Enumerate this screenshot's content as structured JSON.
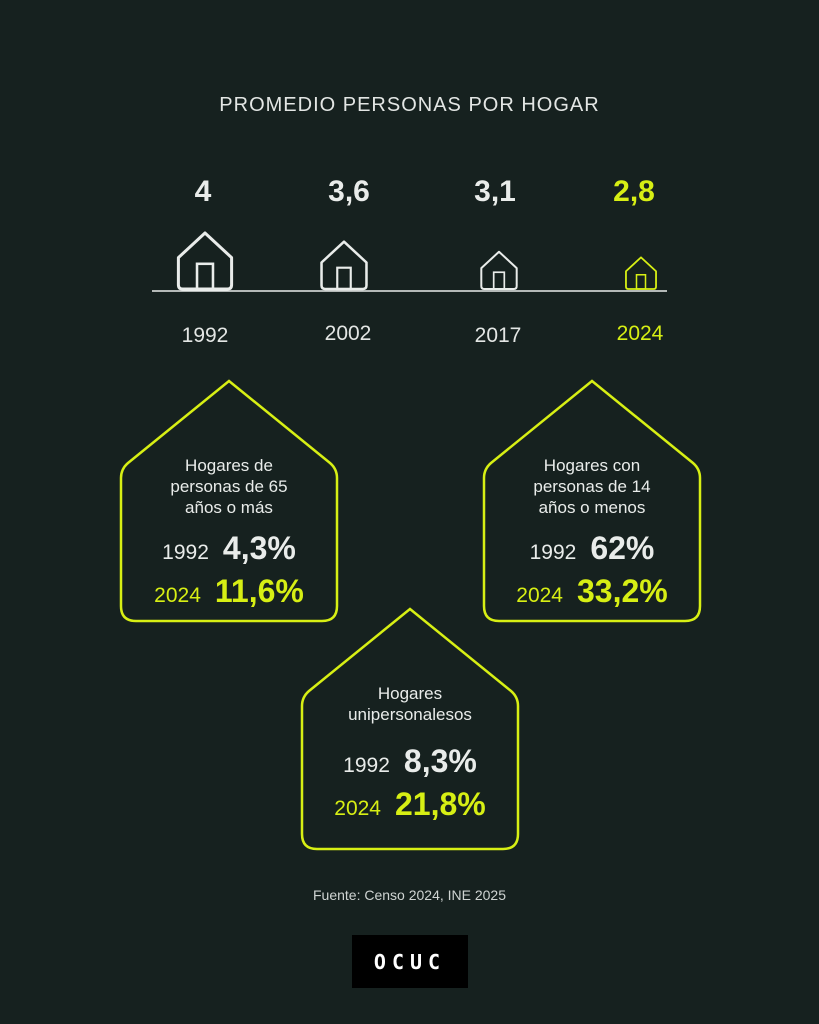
{
  "colors": {
    "background": "#16211f",
    "text": "#e9ecea",
    "accent": "#d7ef14"
  },
  "title": "PROMEDIO PERSONAS POR HOGAR",
  "chart_data": {
    "type": "bar",
    "title": "PROMEDIO PERSONAS POR HOGAR",
    "categories": [
      "1992",
      "2002",
      "2017",
      "2024"
    ],
    "values": [
      4,
      3.6,
      3.1,
      2.8
    ],
    "value_labels": [
      "4",
      "3,6",
      "3,1",
      "2,8"
    ],
    "highlight_index": 3,
    "mark": "house-icon scaled by value"
  },
  "cards": [
    {
      "label_lines": [
        "Hogares de",
        "personas de 65",
        "años o más"
      ],
      "year_a": "1992",
      "value_a": "4,3%",
      "year_b": "2024",
      "value_b": "11,6%"
    },
    {
      "label_lines": [
        "Hogares con",
        "personas de 14",
        "años o menos"
      ],
      "year_a": "1992",
      "value_a": "62%",
      "year_b": "2024",
      "value_b": "33,2%"
    },
    {
      "label_lines": [
        "Hogares",
        "unipersonalesos"
      ],
      "year_a": "1992",
      "value_a": "8,3%",
      "year_b": "2024",
      "value_b": "21,8%"
    }
  ],
  "source": "Fuente: Censo 2024, INE 2025",
  "logo": "OCUC"
}
